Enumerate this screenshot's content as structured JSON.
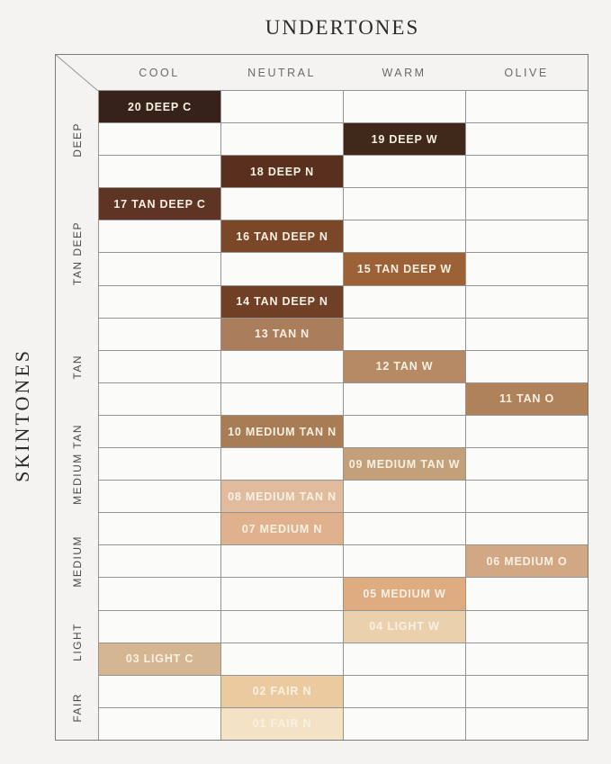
{
  "page_title": "UNDERTONES",
  "side_axis_label": "SKINTONES",
  "colors": {
    "background": "#f4f3f2",
    "cell_fill": "#fbfbfa",
    "grid_line": "#949494",
    "table_border": "#7a7a7a",
    "title_text": "#2b2b2b",
    "header_text": "#6a6a6a",
    "group_text": "#4a4a4a",
    "shade_text": "#f8f0e2"
  },
  "chart_data": {
    "type": "table",
    "title": "UNDERTONES",
    "x_axis_label": "UNDERTONES",
    "y_axis_label": "SKINTONES",
    "columns": [
      "COOL",
      "NEUTRAL",
      "WARM",
      "OLIVE"
    ],
    "rows": [
      {
        "shade": "20 DEEP C",
        "skintone_group": "DEEP",
        "undertone": "COOL",
        "swatch_color": "#362218"
      },
      {
        "shade": "19 DEEP W",
        "skintone_group": "DEEP",
        "undertone": "WARM",
        "swatch_color": "#40291a"
      },
      {
        "shade": "18 DEEP N",
        "skintone_group": "DEEP",
        "undertone": "NEUTRAL",
        "swatch_color": "#58301d"
      },
      {
        "shade": "17 TAN DEEP C",
        "skintone_group": "TAN DEEP",
        "undertone": "COOL",
        "swatch_color": "#5e3524"
      },
      {
        "shade": "16 TAN DEEP N",
        "skintone_group": "TAN DEEP",
        "undertone": "NEUTRAL",
        "swatch_color": "#7b4729"
      },
      {
        "shade": "15 TAN DEEP W",
        "skintone_group": "TAN DEEP",
        "undertone": "WARM",
        "swatch_color": "#9c6136"
      },
      {
        "shade": "14 TAN DEEP N",
        "skintone_group": "TAN DEEP",
        "undertone": "NEUTRAL",
        "swatch_color": "#6f3f26"
      },
      {
        "shade": "13 TAN N",
        "skintone_group": "TAN",
        "undertone": "NEUTRAL",
        "swatch_color": "#aa7d5c"
      },
      {
        "shade": "12 TAN W",
        "skintone_group": "TAN",
        "undertone": "WARM",
        "swatch_color": "#b58a64"
      },
      {
        "shade": "11 TAN O",
        "skintone_group": "TAN",
        "undertone": "OLIVE",
        "swatch_color": "#b0825a"
      },
      {
        "shade": "10 MEDIUM TAN N",
        "skintone_group": "MEDIUM TAN",
        "undertone": "NEUTRAL",
        "swatch_color": "#a87c55"
      },
      {
        "shade": "09 MEDIUM TAN W",
        "skintone_group": "MEDIUM TAN",
        "undertone": "WARM",
        "swatch_color": "#c4a07a"
      },
      {
        "shade": "08 MEDIUM TAN N",
        "skintone_group": "MEDIUM TAN",
        "undertone": "NEUTRAL",
        "swatch_color": "#e0bb9e"
      },
      {
        "shade": "07 MEDIUM N",
        "skintone_group": "MEDIUM",
        "undertone": "NEUTRAL",
        "swatch_color": "#dfb28d"
      },
      {
        "shade": "06 MEDIUM O",
        "skintone_group": "MEDIUM",
        "undertone": "OLIVE",
        "swatch_color": "#d2a884"
      },
      {
        "shade": "05 MEDIUM W",
        "skintone_group": "MEDIUM",
        "undertone": "WARM",
        "swatch_color": "#dfab81"
      },
      {
        "shade": "04 LIGHT W",
        "skintone_group": "LIGHT",
        "undertone": "WARM",
        "swatch_color": "#ebd0ae"
      },
      {
        "shade": "03 LIGHT C",
        "skintone_group": "LIGHT",
        "undertone": "COOL",
        "swatch_color": "#d5b693"
      },
      {
        "shade": "02 FAIR N",
        "skintone_group": "FAIR",
        "undertone": "NEUTRAL",
        "swatch_color": "#ecca9f"
      },
      {
        "shade": "01 FAIR N",
        "skintone_group": "FAIR",
        "undertone": "NEUTRAL",
        "swatch_color": "#f3e3c4"
      }
    ]
  }
}
